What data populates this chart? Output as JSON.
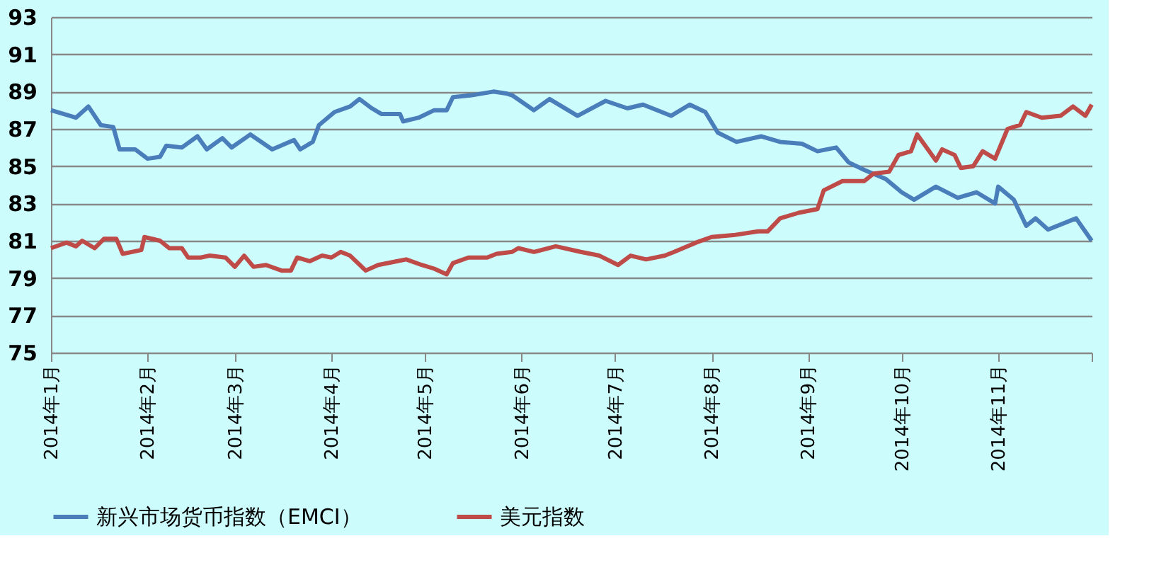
{
  "chart_data": {
    "type": "line",
    "ylim": [
      75,
      93
    ],
    "yticks": [
      75,
      77,
      79,
      81,
      83,
      85,
      87,
      89,
      91,
      93
    ],
    "xlim": [
      "2014-01-01",
      "2014-12-01"
    ],
    "xticks": [
      {
        "value": "2014-01-01",
        "label": "2014年1月"
      },
      {
        "value": "2014-02-01",
        "label": "2014年2月"
      },
      {
        "value": "2014-03-01",
        "label": "2014年3月"
      },
      {
        "value": "2014-04-01",
        "label": "2014年4月"
      },
      {
        "value": "2014-05-01",
        "label": "2014年5月"
      },
      {
        "value": "2014-06-01",
        "label": "2014年6月"
      },
      {
        "value": "2014-07-01",
        "label": "2014年7月"
      },
      {
        "value": "2014-08-01",
        "label": "2014年8月"
      },
      {
        "value": "2014-09-01",
        "label": "2014年9月"
      },
      {
        "value": "2014-10-01",
        "label": "2014年10月"
      },
      {
        "value": "2014-11-01",
        "label": "2014年11月"
      },
      {
        "value": "2014-12-01",
        "label": null
      }
    ],
    "grid": "y",
    "legend": "bottom",
    "line_style": "solid",
    "marker": "none",
    "series": [
      {
        "name": "新兴市场货币指数（EMCI）",
        "color": "#4a7ebb",
        "x": [
          "2014-01-01",
          "2014-01-09",
          "2014-01-13",
          "2014-01-17",
          "2014-01-21",
          "2014-01-23",
          "2014-01-28",
          "2014-02-01",
          "2014-02-05",
          "2014-02-07",
          "2014-02-12",
          "2014-02-17",
          "2014-02-20",
          "2014-02-25",
          "2014-02-28",
          "2014-03-06",
          "2014-03-13",
          "2014-03-20",
          "2014-03-22",
          "2014-03-26",
          "2014-03-28",
          "2014-04-02",
          "2014-04-07",
          "2014-04-10",
          "2014-04-14",
          "2014-04-17",
          "2014-04-23",
          "2014-04-24",
          "2014-04-29",
          "2014-05-04",
          "2014-05-08",
          "2014-05-10",
          "2014-05-16",
          "2014-05-23",
          "2014-05-27",
          "2014-05-29",
          "2014-06-05",
          "2014-06-10",
          "2014-06-19",
          "2014-06-28",
          "2014-07-05",
          "2014-07-10",
          "2014-07-19",
          "2014-07-25",
          "2014-07-30",
          "2014-08-03",
          "2014-08-09",
          "2014-08-17",
          "2014-08-23",
          "2014-08-30",
          "2014-09-04",
          "2014-09-10",
          "2014-09-14",
          "2014-09-19",
          "2014-09-26",
          "2014-10-01",
          "2014-10-05",
          "2014-10-12",
          "2014-10-19",
          "2014-10-25",
          "2014-10-31",
          "2014-11-01",
          "2014-11-06",
          "2014-11-10",
          "2014-11-13",
          "2014-11-17",
          "2014-11-26",
          "2014-12-01"
        ],
        "values": [
          88.0,
          87.6,
          88.2,
          87.2,
          87.1,
          85.9,
          85.9,
          85.4,
          85.5,
          86.1,
          86.0,
          86.6,
          85.9,
          86.5,
          86.0,
          86.7,
          85.9,
          86.4,
          85.9,
          86.3,
          87.2,
          87.9,
          88.2,
          88.6,
          88.1,
          87.8,
          87.8,
          87.4,
          87.6,
          88.0,
          88.0,
          88.7,
          88.8,
          89.0,
          88.9,
          88.8,
          88.0,
          88.6,
          87.7,
          88.5,
          88.1,
          88.3,
          87.7,
          88.3,
          87.9,
          86.8,
          86.3,
          86.6,
          86.3,
          86.2,
          85.8,
          86.0,
          85.2,
          84.8,
          84.3,
          83.6,
          83.2,
          83.9,
          83.3,
          83.6,
          83.0,
          83.9,
          83.2,
          81.8,
          82.2,
          81.6,
          82.2,
          81.0
        ]
      },
      {
        "name": "美元指数",
        "color": "#be4b48",
        "x": [
          "2014-01-01",
          "2014-01-06",
          "2014-01-09",
          "2014-01-11",
          "2014-01-15",
          "2014-01-18",
          "2014-01-22",
          "2014-01-24",
          "2014-01-30",
          "2014-01-31",
          "2014-02-05",
          "2014-02-08",
          "2014-02-12",
          "2014-02-14",
          "2014-02-18",
          "2014-02-21",
          "2014-02-26",
          "2014-03-01",
          "2014-03-04",
          "2014-03-07",
          "2014-03-11",
          "2014-03-16",
          "2014-03-19",
          "2014-03-21",
          "2014-03-25",
          "2014-03-29",
          "2014-04-01",
          "2014-04-04",
          "2014-04-07",
          "2014-04-12",
          "2014-04-16",
          "2014-04-22",
          "2014-04-25",
          "2014-04-30",
          "2014-05-04",
          "2014-05-08",
          "2014-05-10",
          "2014-05-15",
          "2014-05-21",
          "2014-05-24",
          "2014-05-29",
          "2014-05-31",
          "2014-06-05",
          "2014-06-12",
          "2014-06-20",
          "2014-06-26",
          "2014-07-02",
          "2014-07-06",
          "2014-07-11",
          "2014-07-17",
          "2014-07-20",
          "2014-07-27",
          "2014-08-01",
          "2014-08-08",
          "2014-08-16",
          "2014-08-19",
          "2014-08-23",
          "2014-08-29",
          "2014-09-04",
          "2014-09-06",
          "2014-09-12",
          "2014-09-19",
          "2014-09-22",
          "2014-09-27",
          "2014-09-30",
          "2014-10-04",
          "2014-10-06",
          "2014-10-12",
          "2014-10-14",
          "2014-10-18",
          "2014-10-20",
          "2014-10-24",
          "2014-10-27",
          "2014-10-31",
          "2014-11-04",
          "2014-11-08",
          "2014-11-10",
          "2014-11-15",
          "2014-11-21",
          "2014-11-25",
          "2014-11-29",
          "2014-12-01"
        ],
        "values": [
          80.6,
          80.9,
          80.7,
          81.0,
          80.6,
          81.1,
          81.1,
          80.3,
          80.5,
          81.2,
          81.0,
          80.6,
          80.6,
          80.1,
          80.1,
          80.2,
          80.1,
          79.6,
          80.2,
          79.6,
          79.7,
          79.4,
          79.4,
          80.1,
          79.9,
          80.2,
          80.1,
          80.4,
          80.2,
          79.4,
          79.7,
          79.9,
          80.0,
          79.7,
          79.5,
          79.2,
          79.8,
          80.1,
          80.1,
          80.3,
          80.4,
          80.6,
          80.4,
          80.7,
          80.4,
          80.2,
          79.7,
          80.2,
          80.0,
          80.2,
          80.4,
          80.9,
          81.2,
          81.3,
          81.5,
          81.5,
          82.2,
          82.5,
          82.7,
          83.7,
          84.2,
          84.2,
          84.6,
          84.7,
          85.6,
          85.8,
          86.7,
          85.3,
          85.9,
          85.6,
          84.9,
          85.0,
          85.8,
          85.4,
          87.0,
          87.2,
          87.9,
          87.6,
          87.7,
          88.2,
          87.7,
          88.3
        ]
      }
    ]
  }
}
